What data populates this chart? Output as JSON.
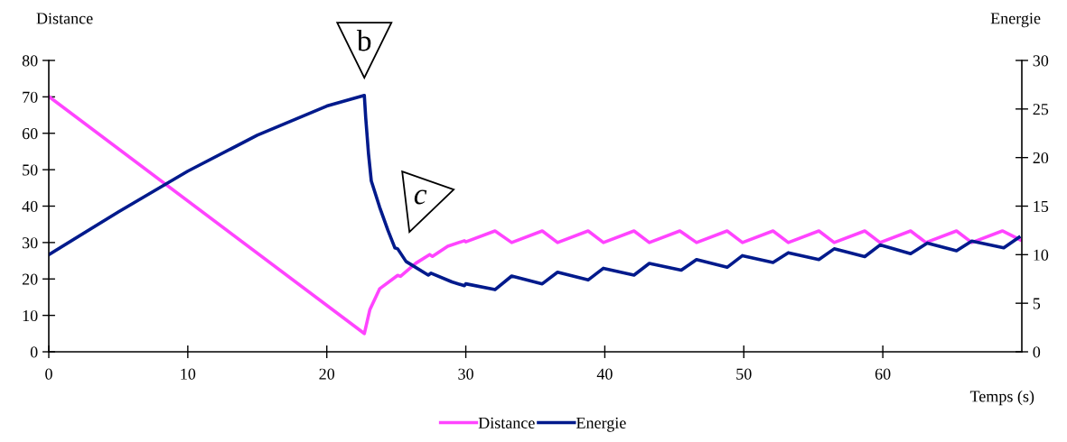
{
  "chart_data": {
    "type": "line",
    "xlabel": "Temps (s)",
    "ylabel": "Distance",
    "y2label": "Energie",
    "xlim": [
      0,
      70
    ],
    "xticks": [
      0,
      10,
      20,
      30,
      40,
      50,
      60
    ],
    "ylim": [
      0,
      80
    ],
    "yticks": [
      0,
      10,
      20,
      30,
      40,
      50,
      60,
      70,
      80
    ],
    "y2lim": [
      0,
      30
    ],
    "y2ticks": [
      0,
      5,
      10,
      15,
      20,
      25,
      30
    ],
    "grid": false,
    "legend": "bottom",
    "marker": "none",
    "line_style": "solid",
    "annotations": [
      {
        "text": "b",
        "x": 22.7,
        "y": 70.3
      },
      {
        "text": "c",
        "x": 25.1,
        "y": 28.2
      }
    ],
    "series": [
      {
        "name": "Distance",
        "color": "#ff44ff",
        "x": [
          0,
          22.7,
          23.1,
          23.8,
          25.1,
          25.3,
          26.4,
          27.4,
          27.6,
          28.7,
          29.9,
          30.0,
          32.1,
          33.3,
          35.5,
          36.6,
          38.8,
          39.9,
          42.1,
          43.2,
          45.4,
          46.6,
          48.8,
          49.9,
          52.1,
          53.2,
          55.4,
          56.5,
          58.7,
          59.8,
          62.0,
          63.1,
          65.3,
          66.4,
          68.6,
          69.9
        ],
        "values": [
          70.1,
          5,
          11.6,
          17.3,
          21,
          20.7,
          24.3,
          26.7,
          26.2,
          29,
          30.5,
          30.2,
          33.2,
          30,
          33.2,
          30,
          33.2,
          30,
          33.2,
          30,
          33.2,
          30,
          33.2,
          30,
          33.2,
          30,
          33.2,
          30,
          33.2,
          30,
          33.2,
          30,
          33.2,
          30,
          33.2,
          30.7
        ]
      },
      {
        "name": "Energie",
        "color": "#001a8c",
        "axis": "y2",
        "x": [
          0,
          5,
          10,
          15,
          20,
          22.7,
          22.8,
          23.0,
          23.2,
          23.8,
          24.4,
          24.9,
          25.1,
          25.7,
          27.3,
          27.5,
          29.0,
          29.9,
          30.0,
          32.1,
          33.3,
          35.5,
          36.6,
          38.8,
          39.9,
          42.1,
          43.2,
          45.5,
          46.6,
          48.8,
          49.9,
          52.1,
          53.2,
          55.4,
          56.5,
          58.7,
          59.8,
          62.0,
          63.2,
          65.3,
          66.4,
          68.7,
          69.8
        ],
        "values": [
          10.0,
          14.4,
          18.6,
          22.3,
          25.3,
          26.4,
          24.1,
          20.4,
          17.6,
          14.9,
          12.5,
          10.7,
          10.6,
          9.3,
          7.9,
          8.1,
          7.2,
          6.8,
          7.0,
          6.4,
          7.8,
          7.0,
          8.2,
          7.4,
          8.6,
          7.9,
          9.1,
          8.4,
          9.5,
          8.7,
          9.9,
          9.2,
          10.2,
          9.5,
          10.6,
          9.8,
          11.0,
          10.1,
          11.2,
          10.4,
          11.4,
          10.7,
          11.8
        ]
      }
    ]
  }
}
